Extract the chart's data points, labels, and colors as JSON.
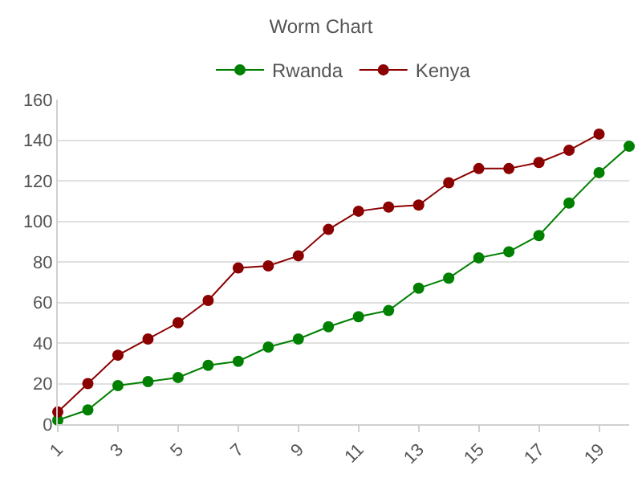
{
  "chart_data": {
    "type": "line",
    "title": "Worm Chart",
    "x": [
      1,
      2,
      3,
      4,
      5,
      6,
      7,
      8,
      9,
      10,
      11,
      12,
      13,
      14,
      15,
      16,
      17,
      18,
      19,
      20
    ],
    "series": [
      {
        "name": "Rwanda",
        "color": "#008000",
        "values": [
          2,
          7,
          19,
          21,
          23,
          29,
          31,
          38,
          42,
          48,
          53,
          56,
          67,
          72,
          82,
          85,
          93,
          109,
          124,
          137
        ]
      },
      {
        "name": "Kenya",
        "color": "#8b0000",
        "values": [
          6,
          20,
          34,
          42,
          50,
          61,
          77,
          78,
          83,
          96,
          105,
          107,
          108,
          119,
          126,
          126,
          129,
          135,
          143,
          null
        ]
      }
    ],
    "xlim": [
      1,
      20
    ],
    "xticks": [
      1,
      3,
      5,
      7,
      9,
      11,
      13,
      15,
      17,
      19
    ],
    "ylim": [
      0,
      160
    ],
    "yticks": [
      0,
      20,
      40,
      60,
      80,
      100,
      120,
      140,
      160
    ],
    "grid": "y",
    "legend": "top",
    "marker": "circle",
    "line_style": "solid"
  }
}
